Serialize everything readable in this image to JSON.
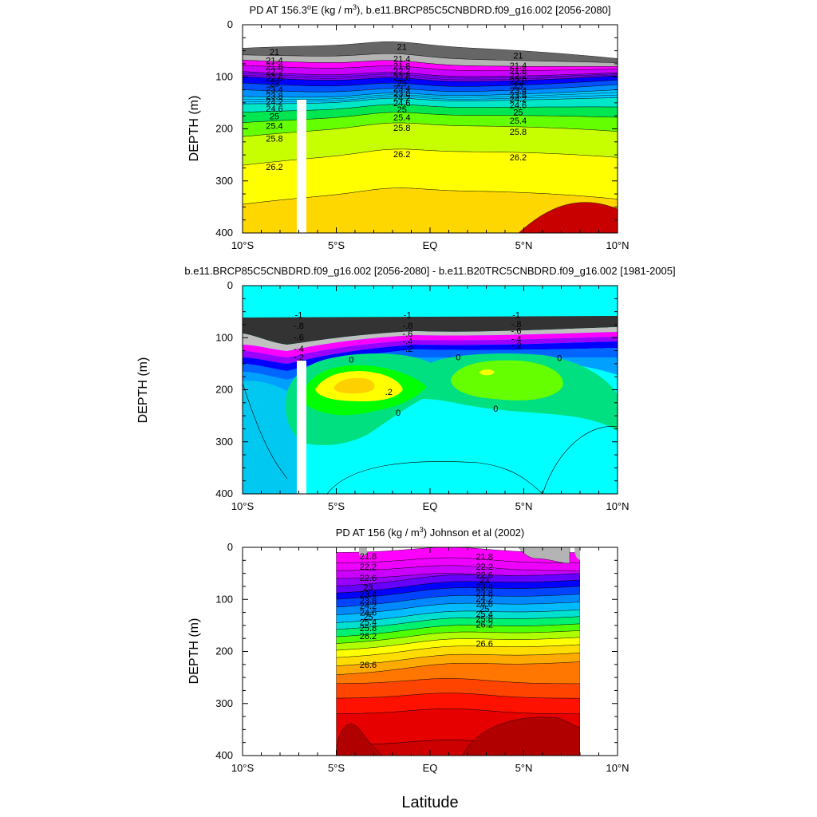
{
  "figure": {
    "xlabel": "Latitude"
  },
  "chart_data": [
    {
      "type": "heatmap",
      "title_main": "PD AT 156.3",
      "title_unit_sup": "o",
      "title_after_deg": "E (kg / m",
      "title_exp": "3",
      "title_tail": "), b.e11.BRCP85C5CNBDRD.f09_g16.002 [2056-2080]",
      "ylabel": "DEPTH (m)",
      "xlim": [
        -10,
        10
      ],
      "ylim": [
        0,
        400
      ],
      "x_ticks": [
        "10°S",
        "5°S",
        "EQ",
        "5°N",
        "10°N"
      ],
      "y_ticks": [
        "0",
        "100",
        "200",
        "300",
        "400"
      ],
      "contour_labels": [
        "21",
        "21.4",
        "21.8",
        "22.2",
        "22.6",
        "23",
        "23.4",
        "23.8",
        "24.2",
        "24.6",
        "25",
        "25.4",
        "25.8",
        "26.2"
      ],
      "levels": [
        {
          "value": 21.0,
          "depth_at_10S": 45,
          "depth_at_EQ": 42,
          "depth_at_10N": 65
        },
        {
          "value": 21.4,
          "depth_at_10S": 58,
          "depth_at_EQ": 65,
          "depth_at_10N": 73
        },
        {
          "value": 21.8,
          "depth_at_10S": 68,
          "depth_at_EQ": 78,
          "depth_at_10N": 80
        },
        {
          "value": 22.2,
          "depth_at_10S": 78,
          "depth_at_EQ": 88,
          "depth_at_10N": 85
        },
        {
          "value": 22.6,
          "depth_at_10S": 90,
          "depth_at_EQ": 100,
          "depth_at_10N": 92
        },
        {
          "value": 23.0,
          "depth_at_10S": 100,
          "depth_at_EQ": 110,
          "depth_at_10N": 98
        },
        {
          "value": 23.4,
          "depth_at_10S": 112,
          "depth_at_EQ": 120,
          "depth_at_10N": 106
        },
        {
          "value": 23.8,
          "depth_at_10S": 125,
          "depth_at_EQ": 130,
          "depth_at_10N": 115
        },
        {
          "value": 24.2,
          "depth_at_10S": 138,
          "depth_at_EQ": 138,
          "depth_at_10N": 125
        },
        {
          "value": 24.6,
          "depth_at_10S": 152,
          "depth_at_EQ": 148,
          "depth_at_10N": 140
        },
        {
          "value": 25.0,
          "depth_at_10S": 168,
          "depth_at_EQ": 160,
          "depth_at_10N": 158
        },
        {
          "value": 25.4,
          "depth_at_10S": 188,
          "depth_at_EQ": 175,
          "depth_at_10N": 178
        },
        {
          "value": 25.8,
          "depth_at_10S": 215,
          "depth_at_EQ": 195,
          "depth_at_10N": 205
        },
        {
          "value": 26.2,
          "depth_at_10S": 270,
          "depth_at_EQ": 245,
          "depth_at_10N": 255
        },
        {
          "value": 26.6,
          "depth_at_10S": 345,
          "depth_at_EQ": 320,
          "depth_at_10N": 335
        }
      ],
      "masked_column_lat": [
        -7.3,
        -6.8
      ],
      "masked_column_top_depth": 145
    },
    {
      "type": "heatmap",
      "title": "b.e11.BRCP85C5CNBDRD.f09_g16.002 [2056-2080] - b.e11.B20TRC5CNBDRD.f09_g16.002 [1981-2005]",
      "ylabel": "DEPTH (m)",
      "xlim": [
        -10,
        10
      ],
      "ylim": [
        0,
        400
      ],
      "x_ticks": [
        "10°S",
        "5°S",
        "EQ",
        "5°N",
        "10°N"
      ],
      "y_ticks": [
        "0",
        "100",
        "200",
        "300",
        "400"
      ],
      "contour_labels": [
        "-1",
        "-.8",
        "-.6",
        "-.4",
        "-.2",
        "0",
        ".2"
      ],
      "masked_column_lat": [
        -7.3,
        -6.8
      ],
      "masked_column_top_depth": 145
    },
    {
      "type": "heatmap",
      "title_main": "PD AT 156 (kg / m",
      "title_exp": "3",
      "title_tail": ") Johnson et al (2002)",
      "ylabel": "DEPTH (m)",
      "xlim": [
        -10,
        10
      ],
      "ylim": [
        0,
        400
      ],
      "data_lat_range": [
        -5,
        8
      ],
      "x_ticks": [
        "10°S",
        "5°S",
        "EQ",
        "5°N",
        "10°N"
      ],
      "y_ticks": [
        "0",
        "100",
        "200",
        "300",
        "400"
      ],
      "contour_labels": [
        "21.8",
        "22.2",
        "22.6",
        "23",
        "23.4",
        "23.8",
        "24.2",
        "24.6",
        "25",
        "25.4",
        "25.8",
        "26.2",
        "26.6"
      ]
    }
  ]
}
